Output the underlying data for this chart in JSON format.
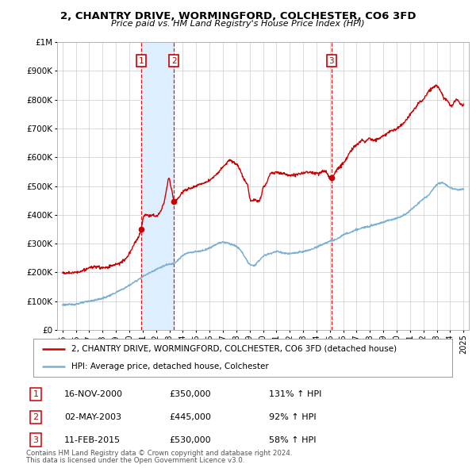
{
  "title": "2, CHANTRY DRIVE, WORMINGFORD, COLCHESTER, CO6 3FD",
  "subtitle": "Price paid vs. HM Land Registry's House Price Index (HPI)",
  "sale_dates_numeric": [
    2000.877,
    2003.331,
    2015.112
  ],
  "sale_prices": [
    350000,
    445000,
    530000
  ],
  "sale_labels": [
    "1",
    "2",
    "3"
  ],
  "sale_info": [
    [
      "16-NOV-2000",
      "£350,000",
      "131% ↑ HPI"
    ],
    [
      "02-MAY-2003",
      "£445,000",
      "92% ↑ HPI"
    ],
    [
      "11-FEB-2015",
      "£530,000",
      "58% ↑ HPI"
    ]
  ],
  "legend_house": "2, CHANTRY DRIVE, WORMINGFORD, COLCHESTER, CO6 3FD (detached house)",
  "legend_hpi": "HPI: Average price, detached house, Colchester",
  "footer": [
    "Contains HM Land Registry data © Crown copyright and database right 2024.",
    "This data is licensed under the Open Government Licence v3.0."
  ],
  "house_color": "#cc0000",
  "hpi_color": "#7ab0d4",
  "shade_color": "#ddeeff",
  "vline_color": "#dd0000",
  "label_box_color": "#cc0000",
  "background_color": "#ffffff",
  "grid_color": "#cccccc",
  "ylim": [
    0,
    1000000
  ],
  "yticks": [
    0,
    100000,
    200000,
    300000,
    400000,
    500000,
    600000,
    700000,
    800000,
    900000,
    1000000
  ],
  "x_start_year": 1995,
  "x_end_year": 2025
}
